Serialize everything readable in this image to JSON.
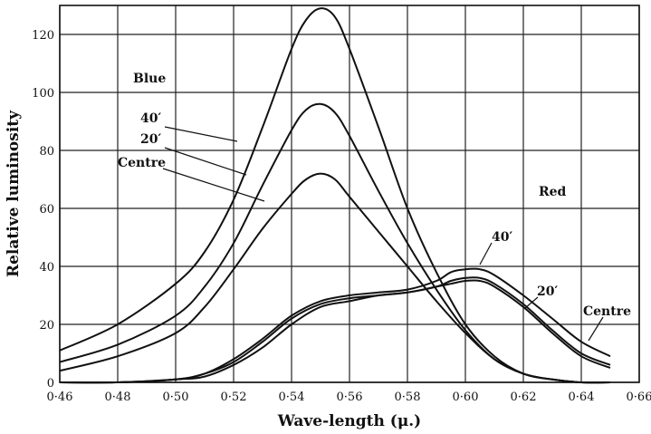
{
  "chart_data": {
    "type": "line",
    "xlabel": "Wave-length (μ.)",
    "ylabel": "Relative luminosity",
    "xlim": [
      0.46,
      0.66
    ],
    "ylim": [
      0,
      130
    ],
    "xticks": [
      "0·46",
      "0·48",
      "0·50",
      "0·52",
      "0·54",
      "0·56",
      "0·58",
      "0·60",
      "0·62",
      "0·64",
      "0·66"
    ],
    "yticks": [
      "0",
      "20",
      "40",
      "60",
      "80",
      "100",
      "120"
    ],
    "grid": true,
    "series": [
      {
        "name": "40′",
        "group": "Blue",
        "x": [
          0.46,
          0.48,
          0.5,
          0.51,
          0.52,
          0.53,
          0.54,
          0.545,
          0.55,
          0.555,
          0.56,
          0.57,
          0.58,
          0.59,
          0.6,
          0.61,
          0.62,
          0.63,
          0.64,
          0.65
        ],
        "y": [
          11,
          20,
          34,
          45,
          63,
          88,
          115,
          125,
          129,
          126,
          115,
          88,
          60,
          38,
          20,
          9,
          3,
          1,
          0,
          0
        ]
      },
      {
        "name": "20′",
        "group": "Blue",
        "x": [
          0.46,
          0.48,
          0.5,
          0.51,
          0.52,
          0.53,
          0.54,
          0.545,
          0.55,
          0.555,
          0.56,
          0.57,
          0.58,
          0.59,
          0.6,
          0.61,
          0.62,
          0.63,
          0.64,
          0.65
        ],
        "y": [
          7,
          13,
          23,
          33,
          48,
          68,
          87,
          94,
          96,
          93,
          85,
          66,
          48,
          32,
          18,
          8,
          3,
          1,
          0,
          0
        ]
      },
      {
        "name": "Centre",
        "group": "Blue",
        "x": [
          0.46,
          0.48,
          0.5,
          0.51,
          0.52,
          0.53,
          0.54,
          0.545,
          0.55,
          0.555,
          0.56,
          0.57,
          0.58,
          0.59,
          0.6,
          0.61,
          0.62,
          0.63,
          0.64,
          0.65
        ],
        "y": [
          4,
          9,
          17,
          26,
          39,
          53,
          65,
          70,
          72,
          70,
          64,
          52,
          40,
          28,
          17,
          8,
          3,
          1,
          0,
          0
        ]
      },
      {
        "name": "40′",
        "group": "Red",
        "x": [
          0.46,
          0.48,
          0.5,
          0.51,
          0.52,
          0.53,
          0.54,
          0.55,
          0.56,
          0.57,
          0.58,
          0.59,
          0.595,
          0.6,
          0.605,
          0.61,
          0.62,
          0.63,
          0.64,
          0.65
        ],
        "y": [
          0,
          0,
          1,
          3,
          8,
          15,
          23,
          28,
          30,
          31,
          32,
          35,
          38,
          39,
          39,
          37,
          30,
          22,
          14,
          9
        ]
      },
      {
        "name": "20′",
        "group": "Red",
        "x": [
          0.46,
          0.48,
          0.5,
          0.51,
          0.52,
          0.53,
          0.54,
          0.55,
          0.56,
          0.57,
          0.58,
          0.59,
          0.595,
          0.6,
          0.605,
          0.61,
          0.62,
          0.63,
          0.64,
          0.65
        ],
        "y": [
          0,
          0,
          1,
          3,
          7,
          14,
          22,
          27,
          29,
          30,
          31,
          33,
          35,
          36,
          36,
          34,
          27,
          18,
          10,
          6
        ]
      },
      {
        "name": "Centre",
        "group": "Red",
        "x": [
          0.46,
          0.48,
          0.5,
          0.51,
          0.52,
          0.53,
          0.54,
          0.55,
          0.56,
          0.57,
          0.58,
          0.59,
          0.595,
          0.6,
          0.605,
          0.61,
          0.62,
          0.63,
          0.64,
          0.65
        ],
        "y": [
          0,
          0,
          1,
          2,
          6,
          12,
          20,
          26,
          28,
          30,
          31,
          33,
          34,
          35,
          35,
          33,
          26,
          17,
          9,
          5
        ]
      }
    ],
    "annotations": {
      "blue": "Blue",
      "red": "Red",
      "blue_40": "40′",
      "blue_20": "20′",
      "blue_centre": "Centre",
      "red_40": "40′",
      "red_20": "20′",
      "red_centre": "Centre"
    }
  }
}
